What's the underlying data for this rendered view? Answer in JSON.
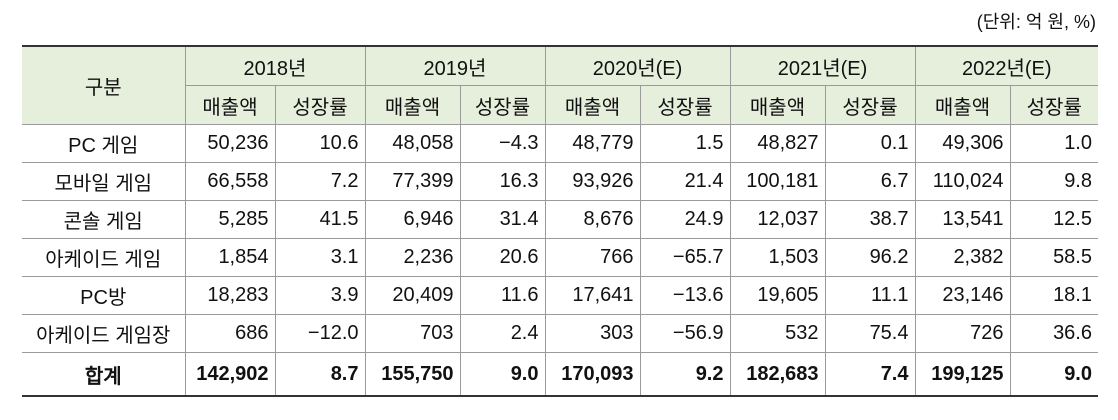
{
  "unit_note": "(단위: 억 원, %)",
  "table": {
    "corner": "구분",
    "years": [
      {
        "label": "2018년",
        "columns": [
          "매출액",
          "성장률"
        ]
      },
      {
        "label": "2019년",
        "columns": [
          "매출액",
          "성장률"
        ]
      },
      {
        "label": "2020년(E)",
        "columns": [
          "매출액",
          "성장률"
        ]
      },
      {
        "label": "2021년(E)",
        "columns": [
          "매출액",
          "성장률"
        ]
      },
      {
        "label": "2022년(E)",
        "columns": [
          "매출액",
          "성장률"
        ]
      }
    ],
    "rows": [
      {
        "label": "PC 게임",
        "cells": [
          "50,236",
          "10.6",
          "48,058",
          "−4.3",
          "48,779",
          "1.5",
          "48,827",
          "0.1",
          "49,306",
          "1.0"
        ]
      },
      {
        "label": "모바일 게임",
        "cells": [
          "66,558",
          "7.2",
          "77,399",
          "16.3",
          "93,926",
          "21.4",
          "100,181",
          "6.7",
          "110,024",
          "9.8"
        ]
      },
      {
        "label": "콘솔 게임",
        "cells": [
          "5,285",
          "41.5",
          "6,946",
          "31.4",
          "8,676",
          "24.9",
          "12,037",
          "38.7",
          "13,541",
          "12.5"
        ]
      },
      {
        "label": "아케이드 게임",
        "cells": [
          "1,854",
          "3.1",
          "2,236",
          "20.6",
          "766",
          "−65.7",
          "1,503",
          "96.2",
          "2,382",
          "58.5"
        ]
      },
      {
        "label": "PC방",
        "cells": [
          "18,283",
          "3.9",
          "20,409",
          "11.6",
          "17,641",
          "−13.6",
          "19,605",
          "11.1",
          "23,146",
          "18.1"
        ]
      },
      {
        "label": "아케이드 게임장",
        "cells": [
          "686",
          "−12.0",
          "703",
          "2.4",
          "303",
          "−56.9",
          "532",
          "75.4",
          "726",
          "36.6"
        ]
      }
    ],
    "total": {
      "label": "합계",
      "cells": [
        "142,902",
        "8.7",
        "155,750",
        "9.0",
        "170,093",
        "9.2",
        "182,683",
        "7.4",
        "199,125",
        "9.0"
      ]
    }
  }
}
